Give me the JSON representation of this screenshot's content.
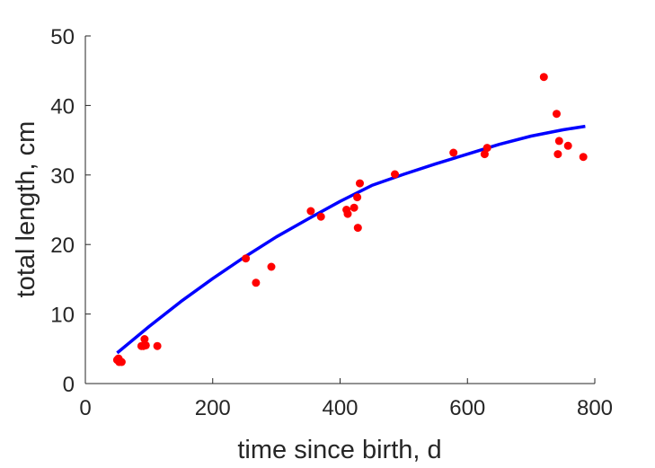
{
  "chart_data": {
    "type": "scatter",
    "title": "",
    "xlabel": "time since birth, d",
    "ylabel": "total length, cm",
    "xlim": [
      0,
      800
    ],
    "ylim": [
      0,
      50
    ],
    "xticks": [
      0,
      200,
      400,
      600,
      800
    ],
    "yticks": [
      0,
      10,
      20,
      30,
      40,
      50
    ],
    "grid": false,
    "legend": "none",
    "series": [
      {
        "kind": "points",
        "color": "#ff0000",
        "points": [
          [
            50,
            3.4
          ],
          [
            52,
            3.6
          ],
          [
            53,
            3.1
          ],
          [
            55,
            3.2
          ],
          [
            57,
            3.1
          ],
          [
            88,
            5.4
          ],
          [
            91,
            5.4
          ],
          [
            93,
            6.4
          ],
          [
            95,
            5.5
          ],
          [
            113,
            5.4
          ],
          [
            252,
            18.0
          ],
          [
            268,
            14.5
          ],
          [
            292,
            16.8
          ],
          [
            354,
            24.8
          ],
          [
            370,
            24.0
          ],
          [
            410,
            25.0
          ],
          [
            412,
            24.4
          ],
          [
            422,
            25.3
          ],
          [
            427,
            26.8
          ],
          [
            428,
            22.4
          ],
          [
            431,
            28.8
          ],
          [
            486,
            30.1
          ],
          [
            578,
            33.2
          ],
          [
            627,
            33.0
          ],
          [
            631,
            33.9
          ],
          [
            720,
            44.1
          ],
          [
            740,
            38.8
          ],
          [
            742,
            33.0
          ],
          [
            744,
            34.9
          ],
          [
            758,
            34.2
          ],
          [
            782,
            32.6
          ]
        ]
      },
      {
        "kind": "line",
        "color": "#0000ff",
        "x": [
          50,
          100,
          150,
          200,
          250,
          300,
          350,
          400,
          450,
          500,
          550,
          600,
          650,
          700,
          750,
          785
        ],
        "values": [
          4.4,
          8.2,
          11.8,
          15.1,
          18.2,
          21.1,
          23.7,
          26.2,
          28.5,
          30.1,
          31.6,
          33.0,
          34.4,
          35.6,
          36.5,
          37.0
        ]
      }
    ]
  }
}
